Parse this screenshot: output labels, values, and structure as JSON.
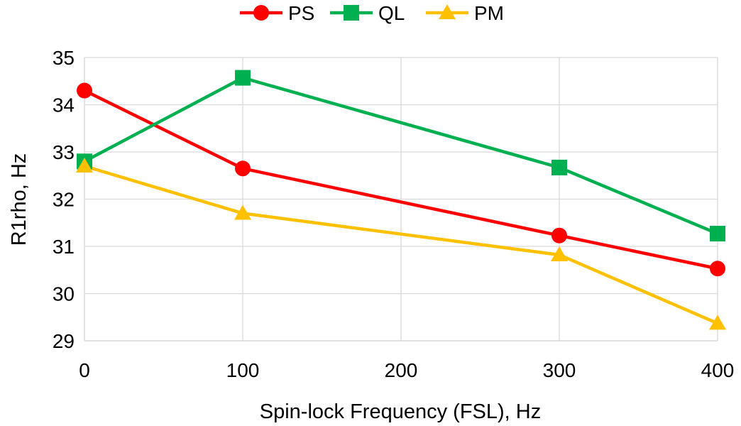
{
  "chart_data": {
    "type": "line",
    "title": "",
    "xlabel": "Spin-lock Frequency (FSL), Hz",
    "ylabel": "R1rho, Hz",
    "xlim": [
      0,
      400
    ],
    "ylim": [
      29,
      35
    ],
    "xticks": [
      0,
      100,
      200,
      300,
      400
    ],
    "yticks": [
      29,
      30,
      31,
      32,
      33,
      34,
      35
    ],
    "grid": true,
    "legend_position": "top-center",
    "x": [
      0,
      100,
      300,
      400
    ],
    "series": [
      {
        "name": "PS",
        "color": "#ff0000",
        "marker": "circle",
        "values": [
          34.3,
          32.65,
          31.23,
          30.53
        ]
      },
      {
        "name": "QL",
        "color": "#00b050",
        "marker": "square",
        "values": [
          32.8,
          34.57,
          32.67,
          31.27
        ]
      },
      {
        "name": "PM",
        "color": "#ffc000",
        "marker": "triangle",
        "values": [
          32.7,
          31.7,
          30.82,
          29.37
        ]
      }
    ]
  }
}
